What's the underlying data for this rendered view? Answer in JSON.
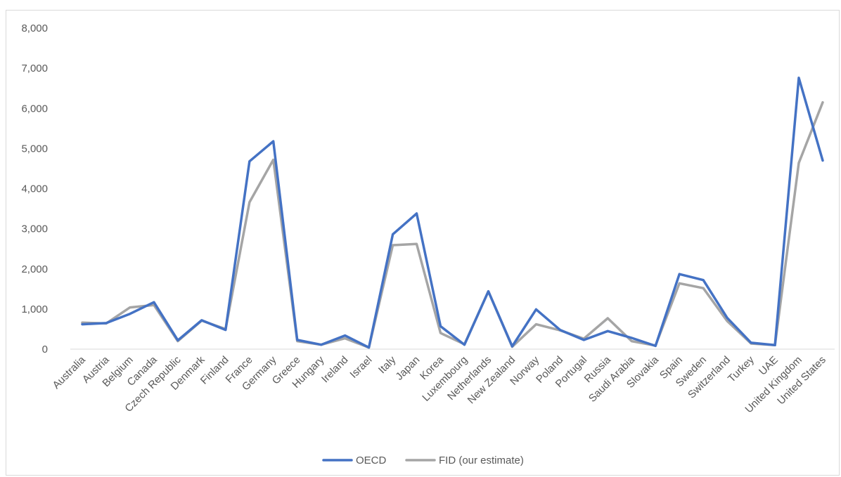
{
  "chart_data": {
    "type": "line",
    "title": "",
    "xlabel": "",
    "ylabel": "",
    "ylim": [
      0,
      8000
    ],
    "yticks": [
      0,
      1000,
      2000,
      3000,
      4000,
      5000,
      6000,
      7000,
      8000
    ],
    "ytick_labels": [
      "0",
      "1,000",
      "2,000",
      "3,000",
      "4,000",
      "5,000",
      "6,000",
      "7,000",
      "8,000"
    ],
    "grid": false,
    "legend_position": "bottom",
    "categories": [
      "Australia",
      "Austria",
      "Belgium",
      "Canada",
      "Czech Republic",
      "Denmark",
      "Finland",
      "France",
      "Germany",
      "Greece",
      "Hungary",
      "Ireland",
      "Israel",
      "Italy",
      "Japan",
      "Korea",
      "Luxembourg",
      "Netherlands",
      "New Zealand",
      "Norway",
      "Poland",
      "Portugal",
      "Russia",
      "Saudi Arabia",
      "Slovakia",
      "Spain",
      "Sweden",
      "Switzerland",
      "Turkey",
      "UAE",
      "United Kingdom",
      "United States"
    ],
    "series": [
      {
        "name": "OECD",
        "color": "#4472c4",
        "values": [
          620,
          650,
          880,
          1170,
          220,
          720,
          480,
          4680,
          5180,
          230,
          110,
          340,
          40,
          2860,
          3380,
          570,
          110,
          1440,
          70,
          990,
          480,
          230,
          450,
          280,
          80,
          1870,
          1720,
          780,
          160,
          100,
          6760,
          4700
        ]
      },
      {
        "name": "FID (our estimate)",
        "color": "#a5a5a5",
        "values": [
          660,
          640,
          1040,
          1100,
          200,
          710,
          500,
          3660,
          4720,
          200,
          110,
          270,
          40,
          2590,
          2620,
          400,
          120,
          1440,
          60,
          620,
          470,
          260,
          770,
          200,
          90,
          1640,
          1520,
          700,
          140,
          100,
          4640,
          6150
        ]
      }
    ]
  }
}
